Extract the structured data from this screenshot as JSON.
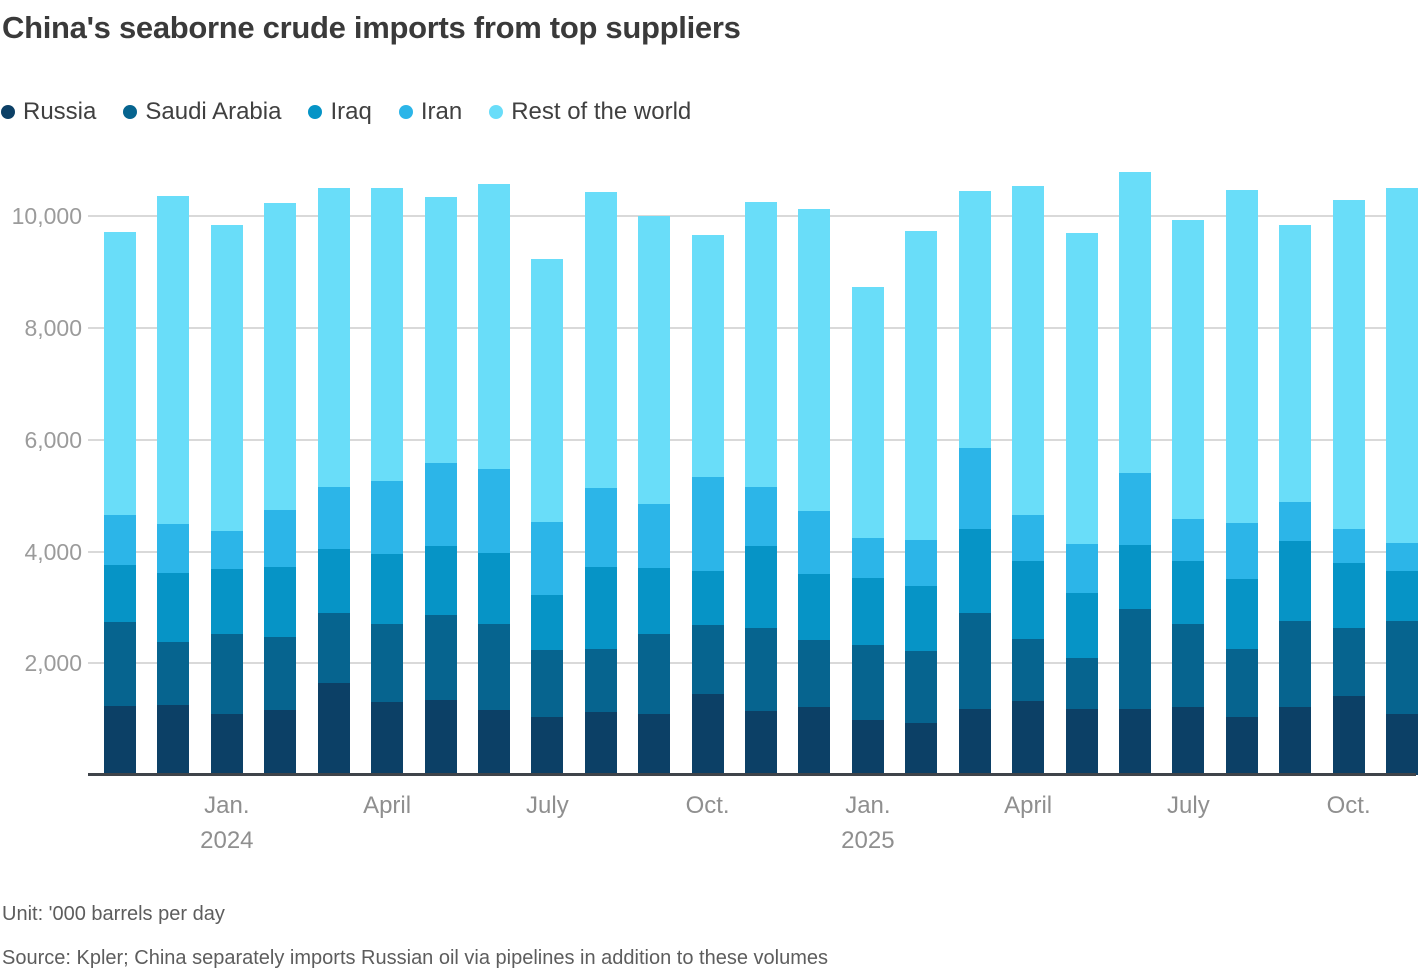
{
  "title": "China's seaborne crude imports from top suppliers",
  "footer": {
    "unit_label": "Unit: '000 barrels per day",
    "source": "Source: Kpler; China separately imports Russian oil via pipelines in addition to these volumes"
  },
  "colors": {
    "title_text": "#3a3a3a",
    "axis_text": "#9b9b9b",
    "gridline": "#d9d9d9",
    "baseline": "#3f444a",
    "footer_text": "#5d5d5d"
  },
  "chart_data": {
    "type": "bar",
    "stacked": true,
    "grid": true,
    "legend_position": "top",
    "unit": "'000 barrels per day",
    "ylim": [
      0,
      11150
    ],
    "yticks": [
      2000,
      4000,
      6000,
      8000,
      10000
    ],
    "ytick_labels": [
      "2,000",
      "4,000",
      "6,000",
      "8,000",
      "10,000"
    ],
    "categories": [
      "Nov. 2023",
      "Dec. 2023",
      "Jan. 2024",
      "Feb. 2024",
      "Mar. 2024",
      "Apr. 2024",
      "May 2024",
      "Jun. 2024",
      "Jul. 2024",
      "Aug. 2024",
      "Sep. 2024",
      "Oct. 2024",
      "Nov. 2024",
      "Dec. 2024",
      "Jan. 2025",
      "Feb. 2025",
      "Mar. 2025",
      "Apr. 2025",
      "May 2025",
      "Jun. 2025",
      "Jul. 2025",
      "Aug. 2025",
      "Sep. 2025",
      "Oct. 2025",
      "Nov. 2025"
    ],
    "xticks": [
      {
        "index": 2,
        "label": "Jan.",
        "year": "2024"
      },
      {
        "index": 5,
        "label": "April"
      },
      {
        "index": 8,
        "label": "July"
      },
      {
        "index": 11,
        "label": "Oct."
      },
      {
        "index": 14,
        "label": "Jan.",
        "year": "2025"
      },
      {
        "index": 17,
        "label": "April"
      },
      {
        "index": 20,
        "label": "July"
      },
      {
        "index": 23,
        "label": "Oct."
      }
    ],
    "series": [
      {
        "name": "Russia",
        "color": "#0c4066",
        "values": [
          1230,
          1260,
          1100,
          1160,
          1650,
          1310,
          1340,
          1160,
          1030,
          1130,
          1090,
          1450,
          1150,
          1220,
          990,
          930,
          1190,
          1320,
          1190,
          1190,
          1220,
          1040,
          1210,
          1420,
          1100
        ]
      },
      {
        "name": "Saudi Arabia",
        "color": "#06648f",
        "values": [
          1500,
          1120,
          1430,
          1310,
          1250,
          1400,
          1530,
          1550,
          1210,
          1120,
          1440,
          1230,
          1480,
          1200,
          1330,
          1290,
          1710,
          1120,
          910,
          1790,
          1490,
          1210,
          1540,
          1210,
          1650
        ]
      },
      {
        "name": "Iraq",
        "color": "#0694c6",
        "values": [
          1030,
          1230,
          1150,
          1260,
          1140,
          1240,
          1230,
          1270,
          990,
          1480,
          1180,
          970,
          1470,
          1180,
          1210,
          1170,
          1510,
          1390,
          1150,
          1140,
          1120,
          1250,
          1430,
          1170,
          900
        ]
      },
      {
        "name": "Iran",
        "color": "#2cb5e8",
        "values": [
          890,
          890,
          680,
          1020,
          1110,
          1320,
          1480,
          1490,
          1300,
          1400,
          1140,
          1680,
          1060,
          1130,
          710,
          820,
          1440,
          830,
          880,
          1290,
          760,
          1010,
          710,
          610,
          510
        ]
      },
      {
        "name": "Rest of the world",
        "color": "#69ddf9",
        "values": [
          5070,
          5870,
          5490,
          5490,
          5350,
          5230,
          4770,
          5100,
          4700,
          5310,
          5150,
          4340,
          5090,
          5400,
          4490,
          5520,
          4600,
          5890,
          5570,
          5380,
          5340,
          5960,
          4950,
          5880,
          6340
        ]
      }
    ],
    "totals": [
      9720,
      10370,
      9850,
      10240,
      10500,
      10500,
      10350,
      10570,
      9230,
      10440,
      10000,
      9670,
      10250,
      10130,
      8730,
      9730,
      10450,
      10550,
      9700,
      10790,
      9930,
      10470,
      9840,
      10290,
      10500
    ]
  }
}
